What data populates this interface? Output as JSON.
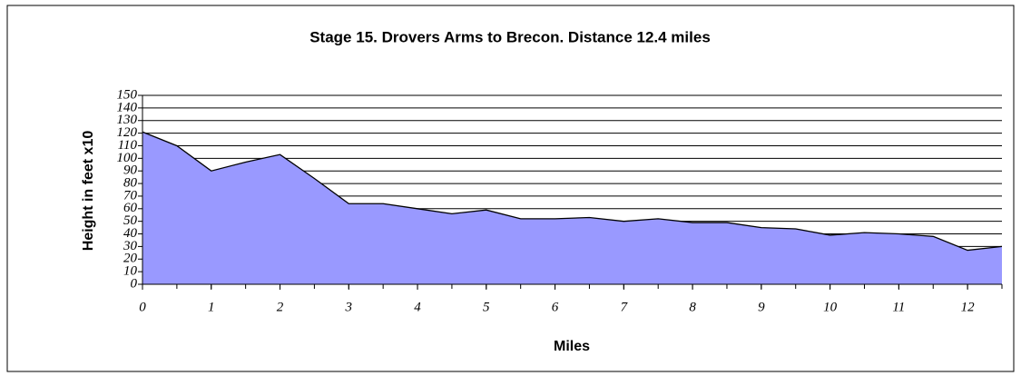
{
  "chart_data": {
    "type": "area",
    "title": "Stage 15. Drovers Arms to Brecon.   Distance 12.4 miles",
    "x_label": "Miles",
    "y_label": "Height in feet x10",
    "x": [
      0,
      0.5,
      1,
      1.5,
      2,
      2.5,
      3,
      3.5,
      4,
      4.5,
      5,
      5.5,
      6,
      6.5,
      7,
      7.5,
      8,
      8.5,
      9,
      9.5,
      10,
      10.5,
      11,
      11.5,
      12,
      12.5
    ],
    "series": [
      {
        "name": "Height",
        "color": "#9999ff",
        "values": [
          121,
          110,
          90,
          97,
          103,
          84,
          64,
          64,
          60,
          56,
          59,
          52,
          52,
          53,
          50,
          52,
          49,
          49,
          45,
          44,
          39,
          41,
          40,
          38,
          27,
          30
        ]
      }
    ],
    "xlim": [
      0,
      12.5
    ],
    "xticks": [
      0,
      1,
      2,
      3,
      4,
      5,
      6,
      7,
      8,
      9,
      10,
      11,
      12
    ],
    "ylim": [
      0,
      150
    ],
    "yticks": [
      0,
      10,
      20,
      30,
      40,
      50,
      60,
      70,
      80,
      90,
      100,
      110,
      120,
      130,
      140,
      150
    ],
    "grid": true
  }
}
